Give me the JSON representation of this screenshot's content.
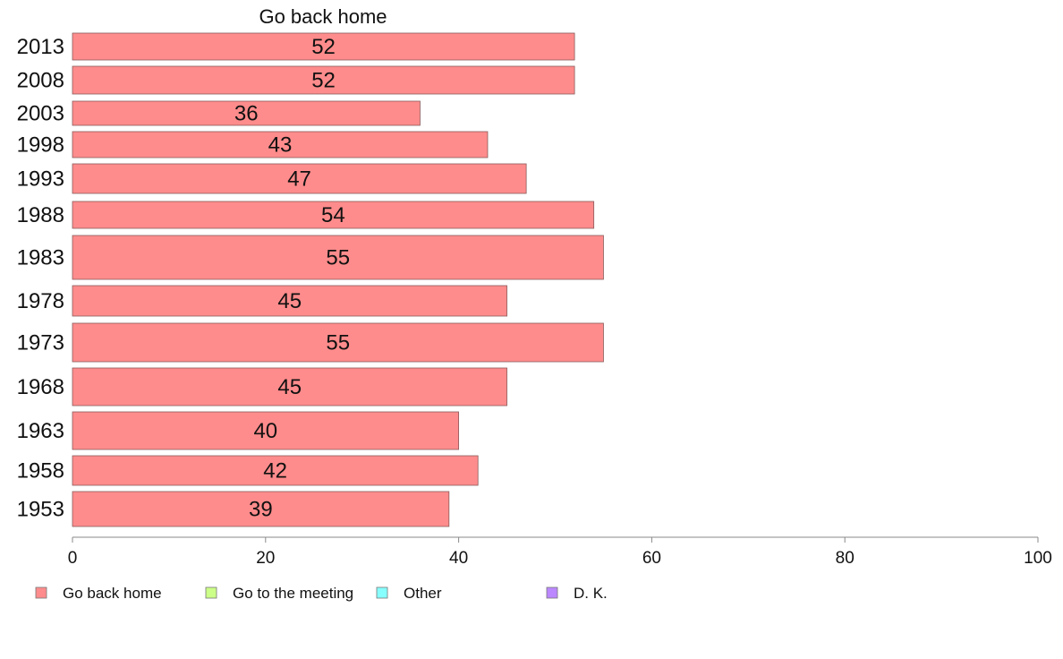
{
  "chart_data": {
    "type": "bar",
    "orientation": "horizontal",
    "title": "Go back home",
    "categories": [
      "2013",
      "2008",
      "2003",
      "1998",
      "1993",
      "1988",
      "1983",
      "1978",
      "1973",
      "1968",
      "1963",
      "1958",
      "1953"
    ],
    "series": [
      {
        "name": "Go back home",
        "color": "#ff8c8c",
        "values": [
          52,
          52,
          36,
          43,
          47,
          54,
          55,
          45,
          55,
          45,
          40,
          42,
          39
        ]
      }
    ],
    "xlim": [
      0,
      100
    ],
    "xticks": [
      "0",
      "20",
      "40",
      "60",
      "80",
      "100"
    ],
    "grid": false,
    "legend": {
      "placement": "bottom-left",
      "entries": [
        {
          "label": "Go back home",
          "color": "#ff8c8c"
        },
        {
          "label": "Go to the meeting",
          "color": "#ccff88"
        },
        {
          "label": "Other",
          "color": "#88ffff"
        },
        {
          "label": "D. K.",
          "color": "#bb88ff"
        }
      ]
    }
  }
}
